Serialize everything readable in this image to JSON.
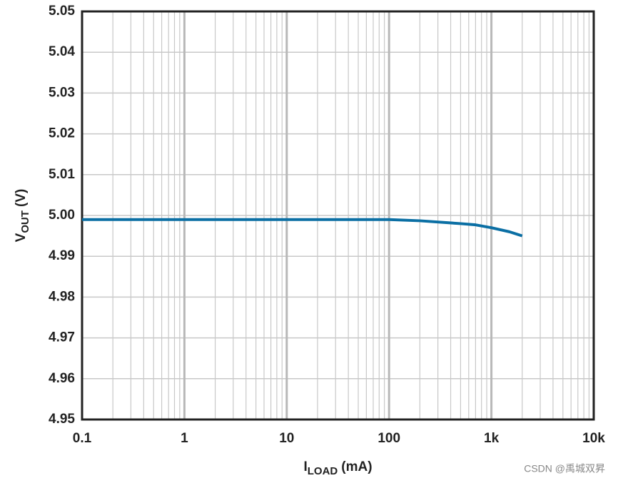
{
  "chart_data": {
    "type": "line",
    "x_label": {
      "main": "I",
      "sub": "LOAD",
      "rest": "(mA)"
    },
    "y_label": {
      "main": "V",
      "sub": "OUT",
      "rest": "(V)"
    },
    "x": [
      0.1,
      1,
      10,
      100,
      200,
      500,
      700,
      1000,
      1500,
      2000
    ],
    "series": [
      {
        "color": "#0b6fa4",
        "values": [
          4.999,
          4.999,
          4.999,
          4.999,
          4.9987,
          4.998,
          4.9977,
          4.997,
          4.996,
          4.995
        ]
      }
    ],
    "xlim": [
      0.1,
      10000
    ],
    "xscale": "log",
    "xticks": [
      0.1,
      1,
      10,
      100,
      {
        "value": 1000,
        "label": "1k"
      },
      {
        "value": 10000,
        "label": "10k"
      }
    ],
    "ylim": [
      4.95,
      5.05
    ],
    "yticks": [
      4.95,
      4.96,
      4.97,
      4.98,
      4.99,
      {
        "value": 5,
        "label": "5.00"
      },
      5.01,
      5.02,
      5.03,
      5.04,
      5.05
    ],
    "grid": true,
    "watermark": "CSDN @禹城双昇"
  }
}
